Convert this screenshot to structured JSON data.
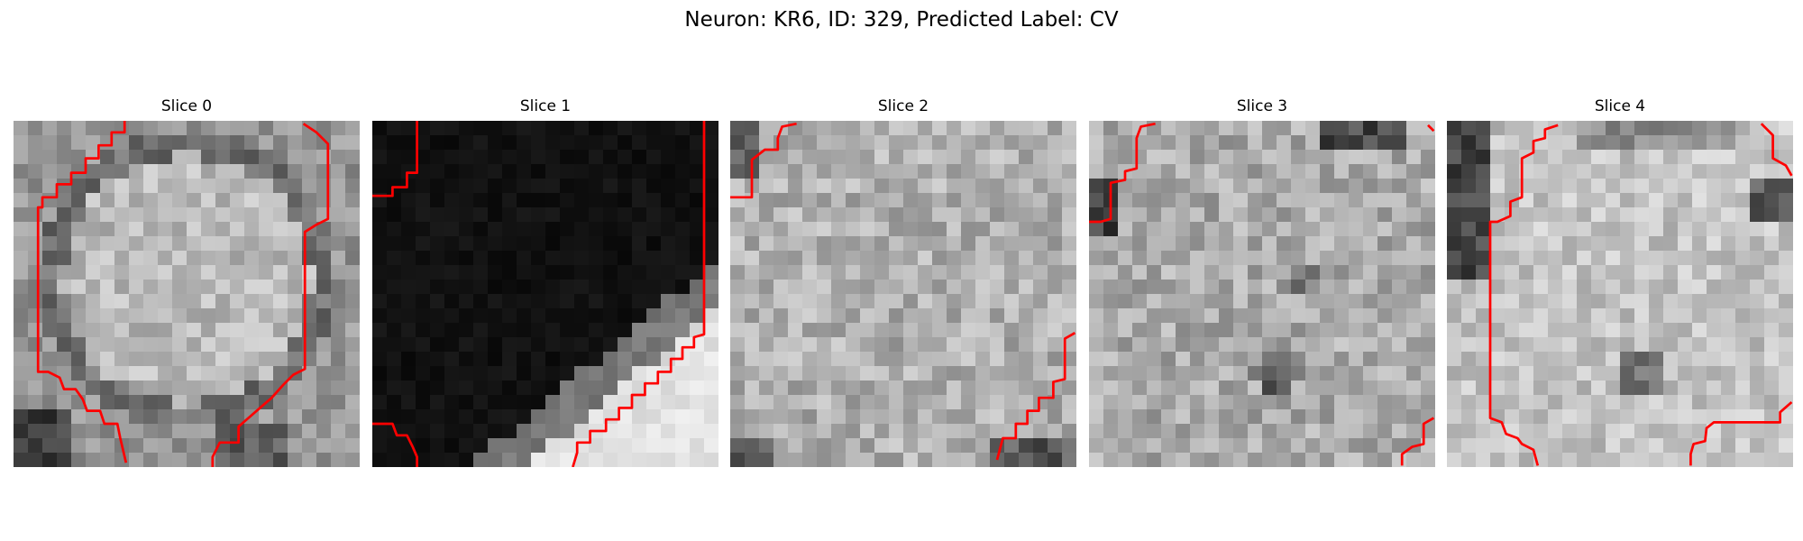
{
  "title": "Neuron: KR6, ID: 329, Predicted Label: CV",
  "contour_color": "#ff0000",
  "panels": [
    {
      "title": "Slice 0",
      "background": "bright-cell-with-dark-rim",
      "contour": "cell-boundary-left-and-right"
    },
    {
      "title": "Slice 1",
      "background": "dark-cell-with-bright-lower-right-corner",
      "contour": "corner-fragments"
    },
    {
      "title": "Slice 2",
      "background": "uniform-grey-texture",
      "contour": "corner-fragments"
    },
    {
      "title": "Slice 3",
      "background": "grey-texture-dark-corners",
      "contour": "corner-fragments"
    },
    {
      "title": "Slice 4",
      "background": "bright-texture-dark-upper-left",
      "contour": "cell-boundary-left-and-lower-right"
    }
  ]
}
